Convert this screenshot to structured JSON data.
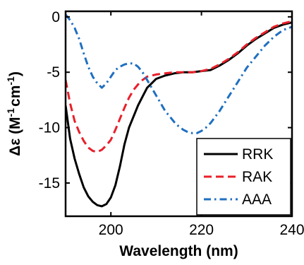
{
  "chart_data": {
    "type": "line",
    "xlabel": "Wavelength (nm)",
    "ylabel_parts": {
      "main": "Δε (M",
      "exp1": "-1",
      "mid": "cm",
      "exp2": "-1",
      "end": ")"
    },
    "xlim": [
      190,
      240
    ],
    "ylim": [
      -18,
      0.5
    ],
    "xticks": [
      200,
      220,
      240
    ],
    "yticks": [
      0,
      -5,
      -10,
      -15
    ],
    "grid": false,
    "legend_placement": "lower-right",
    "series": [
      {
        "name": "RRK",
        "color": "#000000",
        "dash": "solid",
        "x": [
          190,
          191,
          192,
          193,
          194,
          195,
          196,
          197,
          198,
          199,
          200,
          201,
          202,
          203,
          204,
          205,
          206,
          207,
          208,
          209,
          210,
          212,
          214,
          216,
          218,
          220,
          222,
          224,
          226,
          228,
          230,
          232,
          234,
          236,
          238,
          240
        ],
        "y": [
          -8.0,
          -11.0,
          -12.8,
          -14.2,
          -15.4,
          -16.2,
          -16.7,
          -17.0,
          -17.1,
          -16.9,
          -16.3,
          -15.2,
          -13.5,
          -11.5,
          -10.0,
          -9.0,
          -8.0,
          -7.2,
          -6.4,
          -6.0,
          -5.6,
          -5.3,
          -5.1,
          -5.0,
          -5.0,
          -4.9,
          -4.8,
          -4.4,
          -3.9,
          -3.3,
          -2.6,
          -2.0,
          -1.5,
          -1.0,
          -0.7,
          -0.5
        ]
      },
      {
        "name": "RAK",
        "color": "#e8202a",
        "dash": "dashed",
        "x": [
          190,
          191,
          192,
          193,
          194,
          195,
          196,
          197,
          198,
          199,
          200,
          201,
          202,
          203,
          204,
          205,
          206,
          207,
          208,
          209,
          210,
          212,
          214,
          216,
          218,
          220,
          222,
          224,
          226,
          228,
          230,
          232,
          234,
          236,
          238,
          240
        ],
        "y": [
          -5.7,
          -7.8,
          -9.4,
          -10.4,
          -11.2,
          -11.8,
          -12.1,
          -12.2,
          -12.0,
          -11.6,
          -11.1,
          -10.2,
          -9.2,
          -8.2,
          -7.3,
          -6.6,
          -6.1,
          -5.7,
          -5.4,
          -5.3,
          -5.2,
          -5.1,
          -5.0,
          -5.0,
          -5.0,
          -4.9,
          -4.7,
          -4.3,
          -3.8,
          -3.2,
          -2.5,
          -1.9,
          -1.4,
          -0.9,
          -0.6,
          -0.4
        ]
      },
      {
        "name": "AAA",
        "color": "#1f6fc1",
        "dash": "dashdot",
        "x": [
          190,
          191,
          192,
          193,
          194,
          195,
          196,
          197,
          198,
          199,
          200,
          201,
          202,
          203,
          204,
          205,
          206,
          207,
          208,
          209,
          210,
          211,
          212,
          213,
          214,
          215,
          216,
          217,
          218,
          219,
          220,
          221,
          222,
          224,
          226,
          228,
          230,
          232,
          234,
          236,
          238,
          240
        ],
        "y": [
          0.2,
          -0.3,
          -1.0,
          -2.0,
          -3.3,
          -4.5,
          -5.4,
          -6.0,
          -6.4,
          -6.0,
          -5.4,
          -4.8,
          -4.5,
          -4.3,
          -4.2,
          -4.2,
          -4.5,
          -5.0,
          -5.7,
          -6.4,
          -7.1,
          -7.8,
          -8.5,
          -9.0,
          -9.5,
          -9.9,
          -10.2,
          -10.4,
          -10.5,
          -10.5,
          -10.3,
          -10.0,
          -9.6,
          -8.5,
          -7.2,
          -5.9,
          -4.6,
          -3.6,
          -2.6,
          -1.8,
          -1.2,
          -0.9
        ]
      }
    ]
  }
}
